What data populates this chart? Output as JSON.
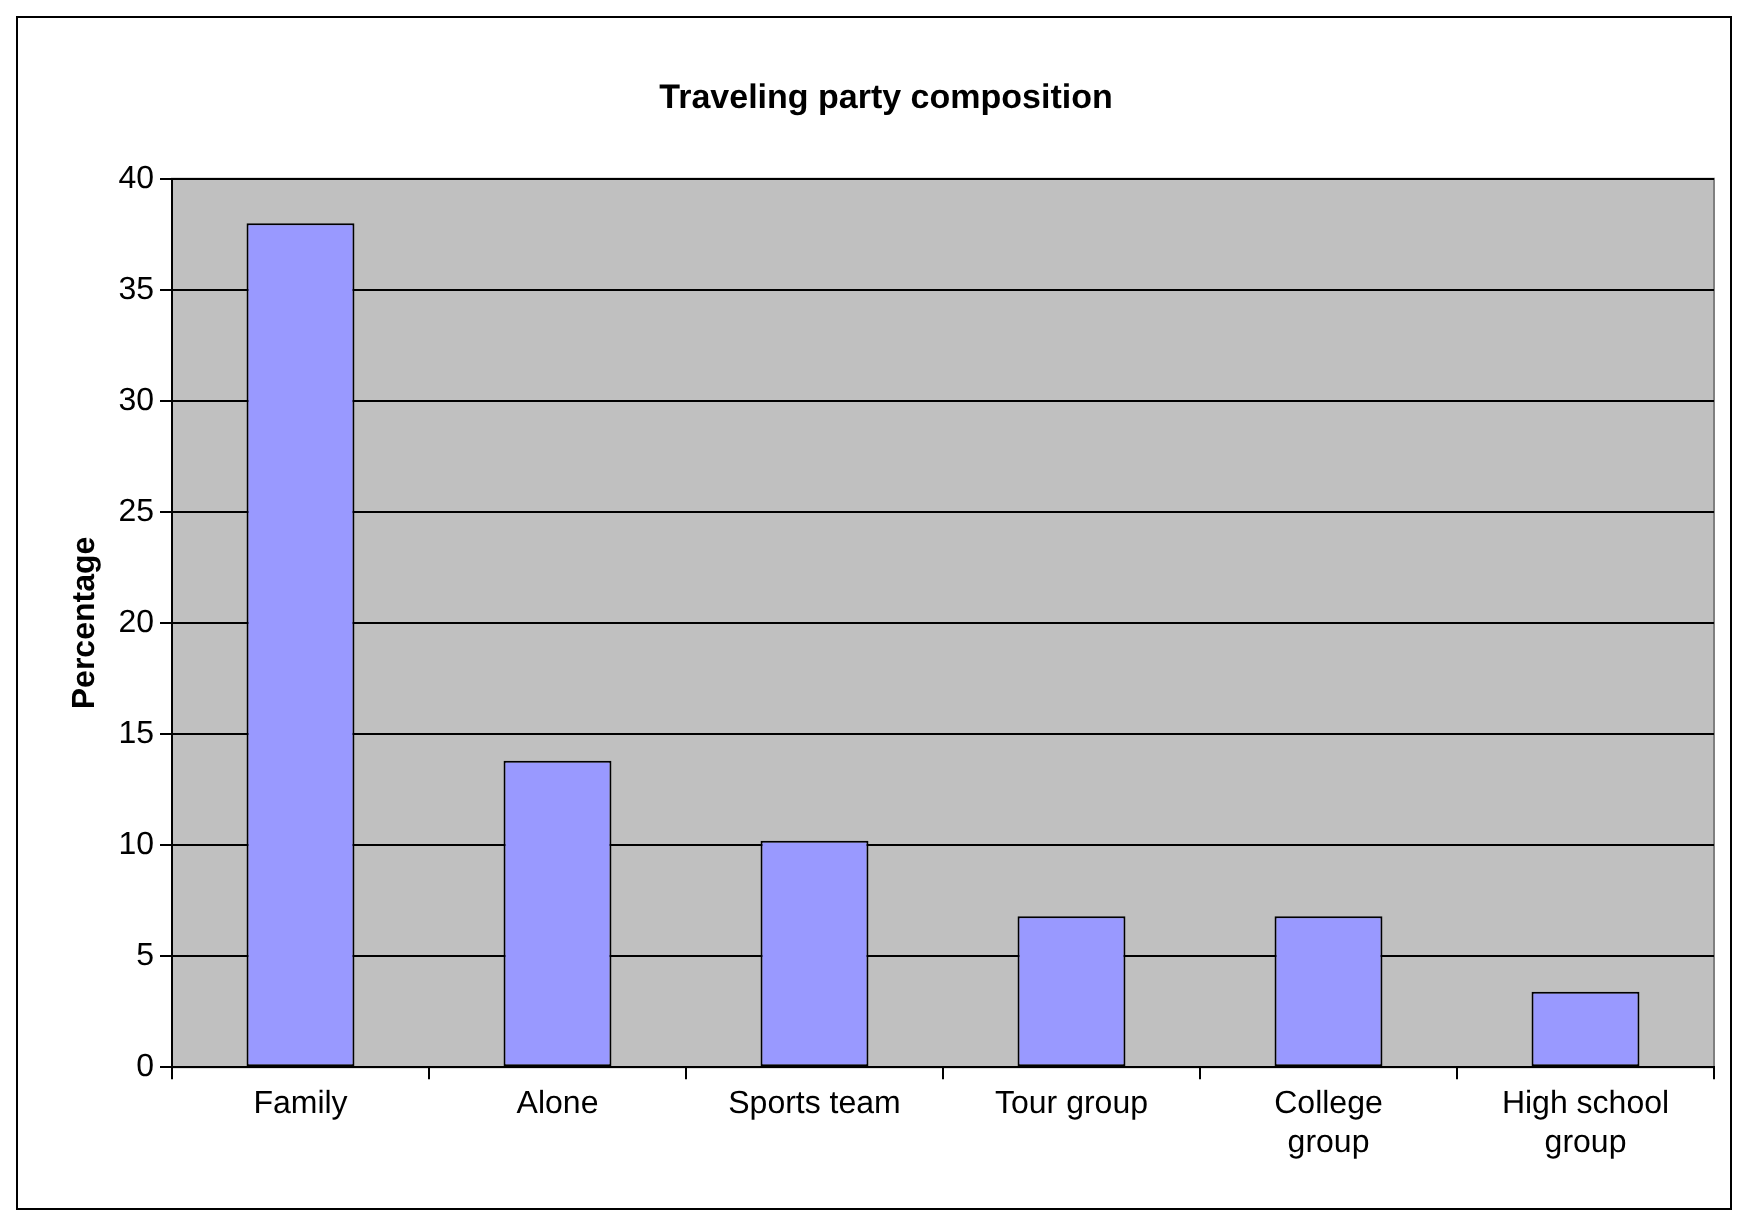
{
  "chart_data": {
    "type": "bar",
    "title": "Traveling party composition",
    "ylabel": "Percentage",
    "categories": [
      "Family",
      "Alone",
      "Sports team",
      "Tour group",
      "College\ngroup",
      "High school\ngroup"
    ],
    "values": [
      38,
      13.8,
      10.2,
      6.8,
      6.8,
      3.4
    ],
    "color": "#9999ff",
    "ylim": [
      0,
      40
    ],
    "yticks": [
      0,
      5,
      10,
      15,
      20,
      25,
      30,
      35,
      40
    ],
    "grid": "y",
    "legend": false
  }
}
